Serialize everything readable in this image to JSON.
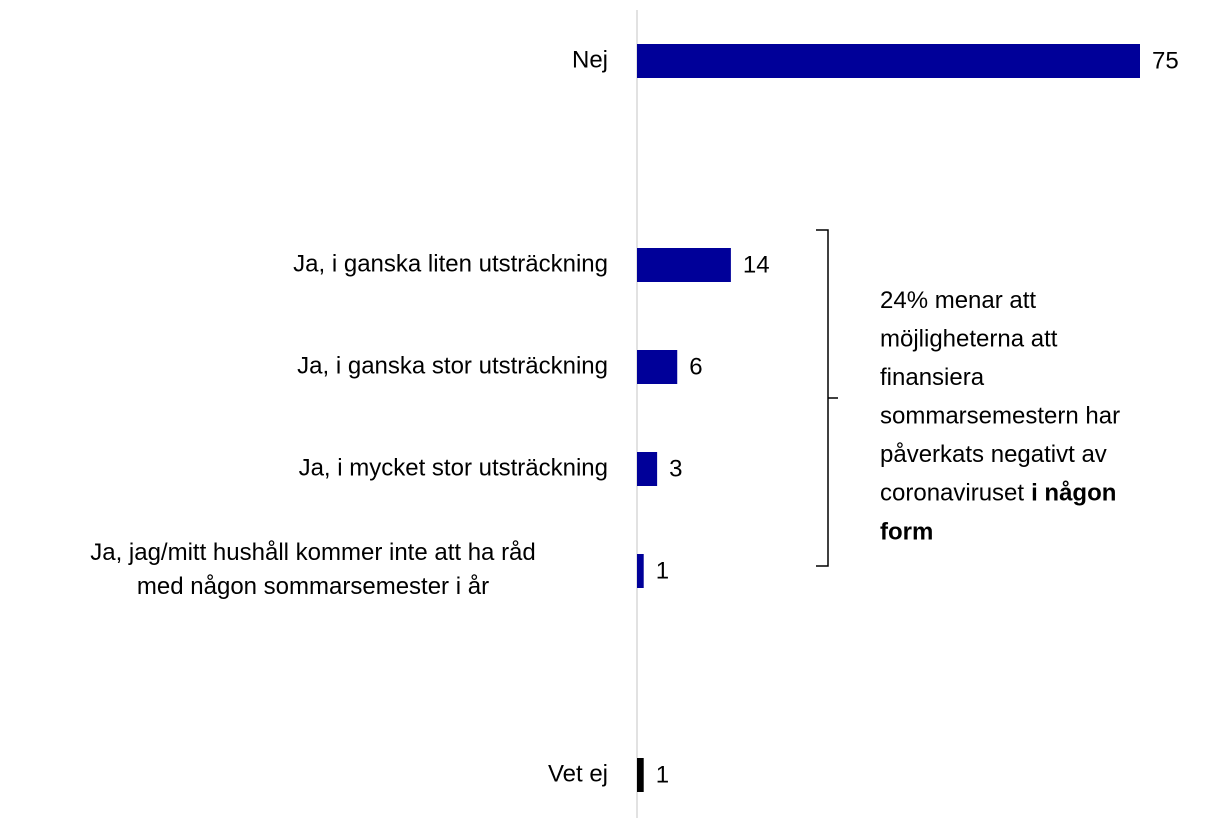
{
  "chart_data": {
    "type": "barh",
    "categories": [
      "Nej",
      null,
      "Ja, i ganska liten utsträckning",
      "Ja, i ganska stor utsträckning",
      "Ja, i mycket stor utsträckning",
      [
        "Ja, jag/mitt hushåll kommer inte att ha råd",
        "med någon sommarsemester i år"
      ],
      null,
      "Vet ej"
    ],
    "values": [
      75,
      null,
      14,
      6,
      3,
      1,
      null,
      1
    ],
    "colors": [
      "#000099",
      null,
      "#000099",
      "#000099",
      "#000099",
      "#000099",
      null,
      "#000000"
    ],
    "xlim": [
      0,
      75
    ],
    "annotation": {
      "lines": [
        "24% menar att",
        "möjligheterna att",
        "finansiera",
        "sommarsemestern har",
        "påverkats negativt av",
        "coronaviruset"
      ],
      "emphasis_lines": [
        "i någon",
        "form"
      ]
    }
  }
}
